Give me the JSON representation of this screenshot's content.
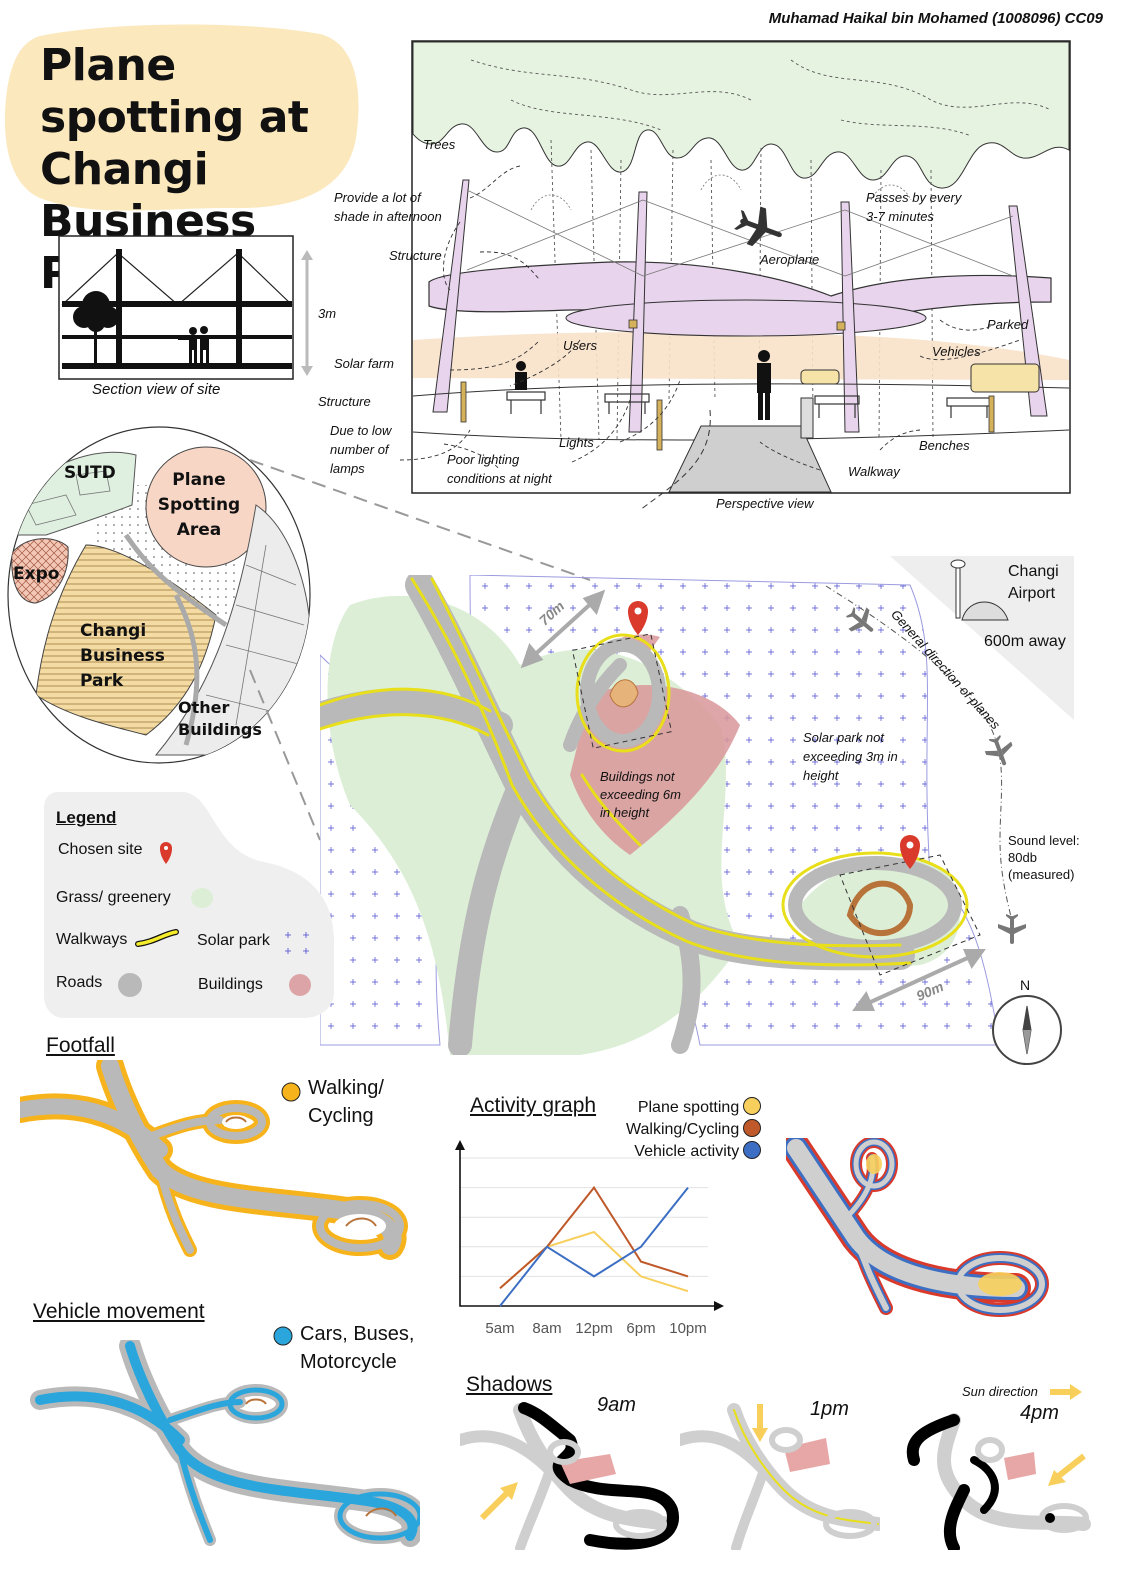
{
  "author": "Muhamad Haikal bin Mohamed (1008096) CC09",
  "title": "Plane spotting at Changi Business Park",
  "section": {
    "caption": "Section view of site",
    "height_label": "3m"
  },
  "perspective": {
    "caption": "Perspective view",
    "labels": {
      "trees": "Trees",
      "shade": "Provide a lot of shade in afternoon",
      "structure_top": "Structure",
      "solar_farm": "Solar farm",
      "structure_bottom": "Structure",
      "low_lamps": "Due to low number of lamps",
      "poor_lighting": "Poor lighting conditions at night",
      "lights": "Lights",
      "users": "Users",
      "passes": "Passes by every 3-7 minutes",
      "aeroplane": "Aeroplane",
      "parked": "Parked",
      "vehicles": "Vehicles",
      "benches": "Benches",
      "walkway": "Walkway"
    }
  },
  "context_map": {
    "sutd": "SUTD",
    "plane_area": "Plane Spotting Area",
    "expo": "Expo",
    "cbp": "Changi Business Park",
    "other": "Other Buildings"
  },
  "airport": {
    "name": "Changi Airport",
    "distance": "600m away",
    "direction": "General direction of planes",
    "sound": "Sound level: 80db (measured)"
  },
  "site_map": {
    "dim_70": "70m",
    "dim_90": "90m",
    "buildings_note": "Buildings not exceeding 6m in height",
    "solar_note": "Solar park not exceeding 3m in height",
    "north": "N"
  },
  "legend": {
    "title": "Legend",
    "items": {
      "chosen_site": "Chosen site",
      "grass": "Grass/ greenery",
      "walkways": "Walkways",
      "solar_park": "Solar park",
      "roads": "Roads",
      "buildings": "Buildings"
    },
    "colors": {
      "grass": "#dcefd6",
      "walkway": "#f4ec2a",
      "road": "#b9b9b9",
      "building": "#d9969a",
      "solar": "#4a4ad0",
      "pin": "#d93a2b"
    }
  },
  "footfall": {
    "header": "Footfall",
    "key": "Walking/ Cycling",
    "color": "#f6b31b"
  },
  "vehicle": {
    "header": "Vehicle movement",
    "key": "Cars, Buses, Motorcycle",
    "color": "#2aa6dc"
  },
  "shadows": {
    "header": "Shadows",
    "sun_direction": "Sun direction",
    "times": [
      "9am",
      "1pm",
      "4pm"
    ]
  },
  "chart_data": {
    "type": "line",
    "title": "Activity graph",
    "categories": [
      "5am",
      "8am",
      "12pm",
      "6pm",
      "10pm"
    ],
    "ylim": [
      0,
      10
    ],
    "series": [
      {
        "name": "Plane spotting",
        "color": "#f7cf5c",
        "values": [
          1.2,
          4.0,
          5.0,
          2.0,
          1.0
        ]
      },
      {
        "name": "Walking/Cycling",
        "color": "#c0592a",
        "values": [
          1.2,
          4.0,
          8.0,
          3.0,
          2.0
        ]
      },
      {
        "name": "Vehicle activity",
        "color": "#3c6fc4",
        "values": [
          0.0,
          4.0,
          2.0,
          4.0,
          8.0
        ]
      }
    ]
  }
}
